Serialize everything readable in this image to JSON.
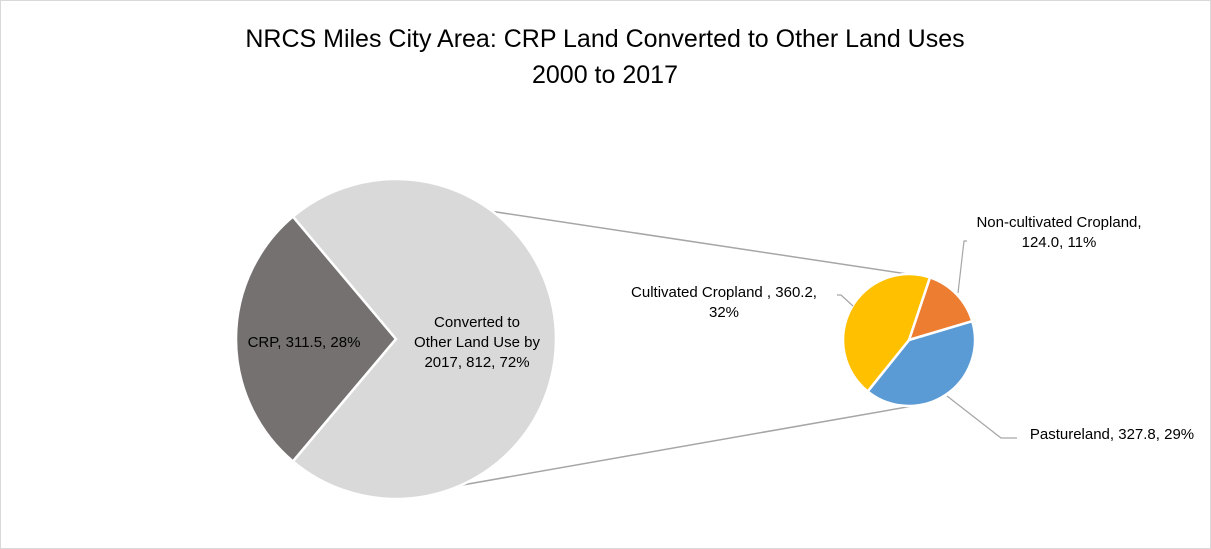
{
  "chart_data": {
    "type": "pie",
    "subtype": "pie-of-pie",
    "title": [
      "NRCS Miles City Area: CRP Land Converted to Other Land Uses",
      "2000 to 2017"
    ],
    "main_pie": {
      "slices": [
        {
          "name": "CRP",
          "value": 311.5,
          "percent": "28%",
          "color": "#767171",
          "label_lines": [
            "CRP, 311.5, 28%"
          ]
        },
        {
          "name": "Converted to Other Land Use by 2017",
          "value": 812,
          "percent": "72%",
          "color": "#d9d9d9",
          "label_lines": [
            "Converted to",
            "Other Land Use by",
            "2017, 812, 72%"
          ]
        }
      ]
    },
    "secondary_pie": {
      "slices": [
        {
          "name": "Non-cultivated Cropland",
          "value": 124.0,
          "percent": "11%",
          "color": "#ed7d31",
          "label_lines": [
            "Non-cultivated Cropland,",
            "124.0, 11%"
          ]
        },
        {
          "name": "Pastureland",
          "value": 327.8,
          "percent": "29%",
          "color": "#5b9bd5",
          "label_lines": [
            "Pastureland, 327.8, 29%"
          ]
        },
        {
          "name": "Cultivated Cropland",
          "value": 360.2,
          "percent": "32%",
          "color": "#ffc000",
          "label_lines": [
            "Cultivated Cropland , 360.2,",
            "32%"
          ]
        }
      ]
    },
    "connector_color": "#a6a6a6",
    "leader_line_color": "#a6a6a6",
    "legend": "none"
  }
}
